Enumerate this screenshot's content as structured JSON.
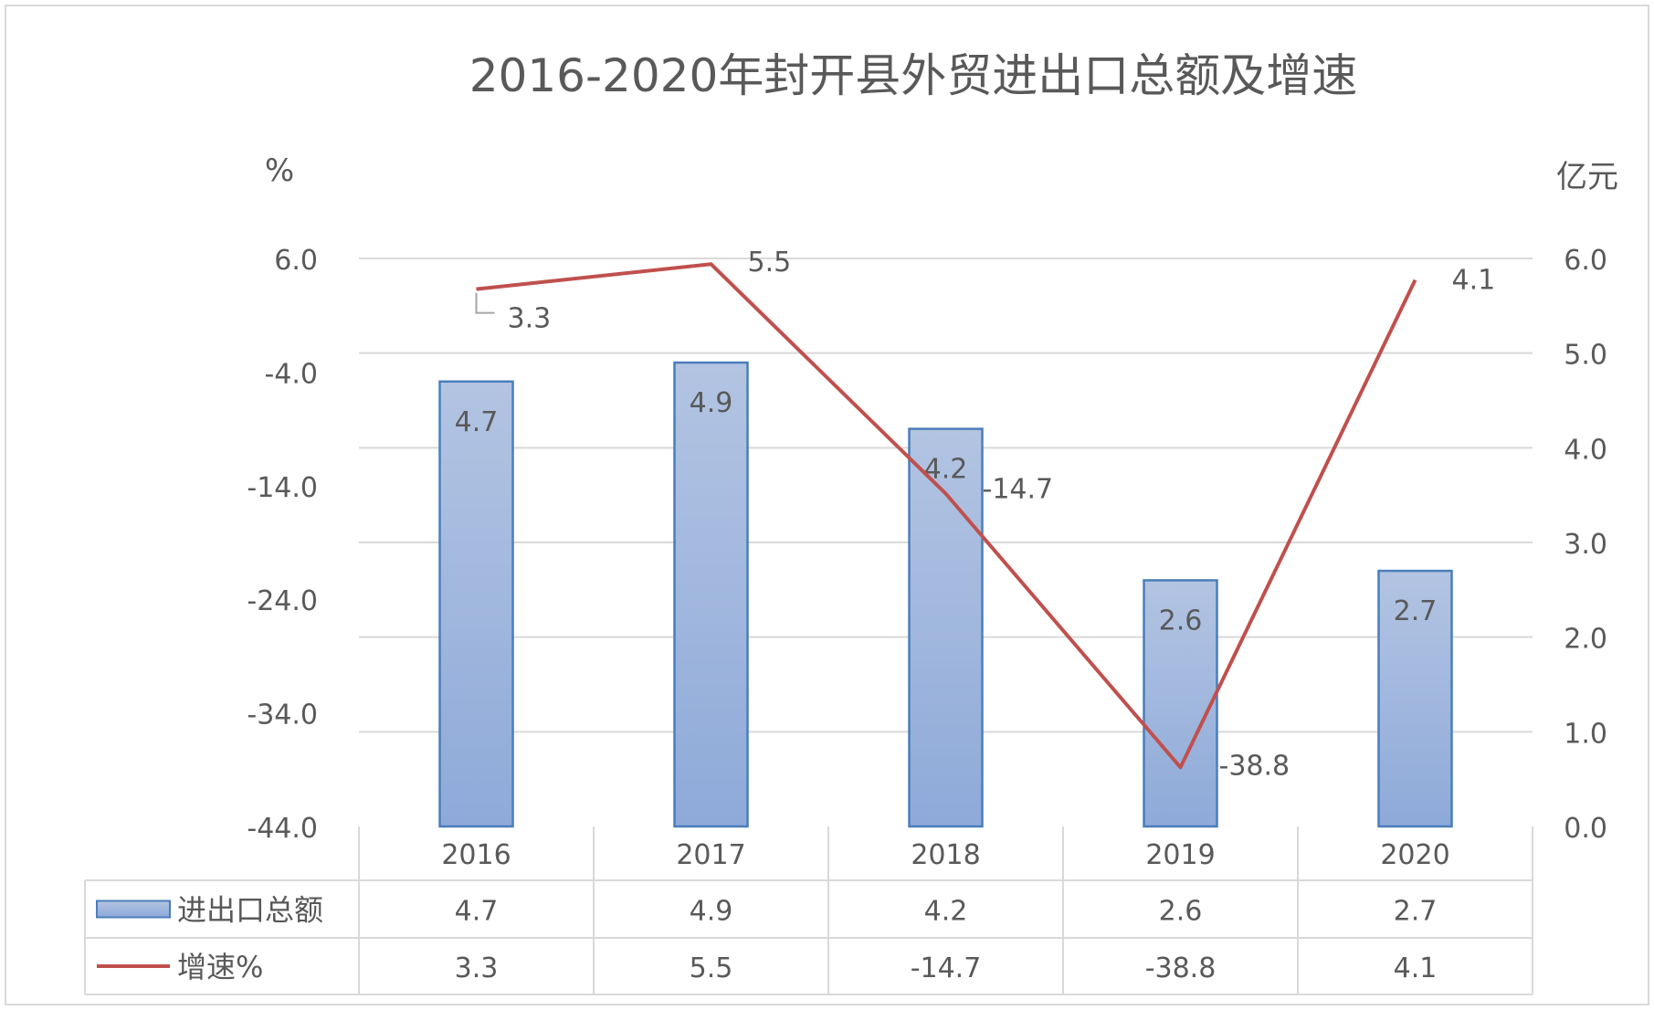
{
  "chart_data": {
    "type": "bar",
    "title": "2016-2020年封开县外贸进出口总额及增速",
    "left_axis_unit": "%",
    "right_axis_unit": "亿元",
    "categories": [
      "2016",
      "2017",
      "2018",
      "2019",
      "2020"
    ],
    "left_ticks": [
      "6.0",
      "-4.0",
      "-14.0",
      "-24.0",
      "-34.0",
      "-44.0"
    ],
    "right_ticks": [
      "6.0",
      "5.0",
      "4.0",
      "3.0",
      "2.0",
      "1.0",
      "0.0"
    ],
    "left_ylim": [
      -44,
      6
    ],
    "right_ylim": [
      0,
      6
    ],
    "grid": true,
    "legend": "data-table",
    "series": [
      {
        "name": "进出口总额",
        "type": "bar",
        "axis": "right",
        "color": "#8eaad9",
        "values": [
          4.7,
          4.9,
          4.2,
          2.6,
          2.7
        ],
        "labels": [
          "4.7",
          "4.9",
          "4.2",
          "2.6",
          "2.7"
        ]
      },
      {
        "name": "增速%",
        "type": "line",
        "axis": "left",
        "color": "#c0504d",
        "values": [
          3.3,
          5.5,
          -14.7,
          -38.8,
          4.1
        ],
        "labels": [
          "3.3",
          "5.5",
          "-14.7",
          "-38.8",
          "4.1"
        ]
      }
    ]
  }
}
